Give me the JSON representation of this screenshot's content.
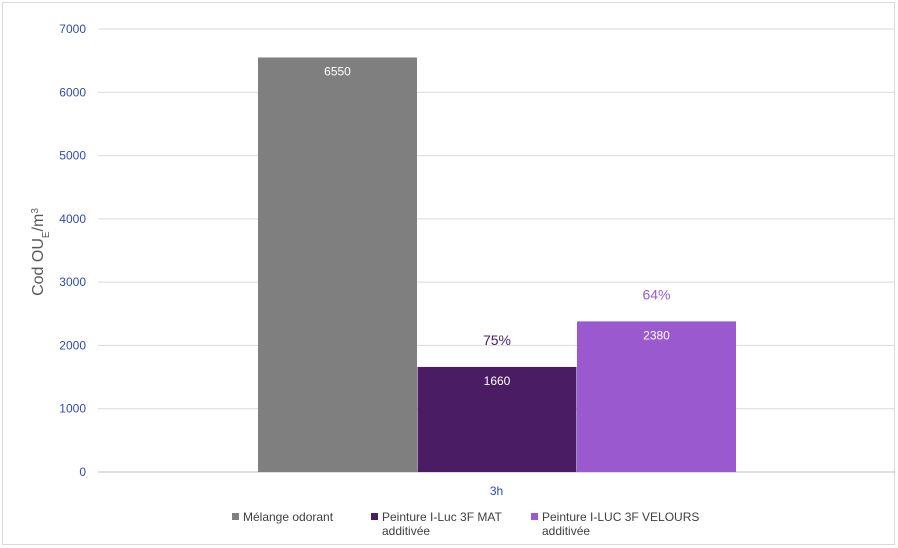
{
  "chart_data": {
    "type": "bar",
    "categories": [
      "3h"
    ],
    "ylim": [
      0,
      7000
    ],
    "yticks": [
      0,
      1000,
      2000,
      3000,
      4000,
      5000,
      6000,
      7000
    ],
    "ylabel": "Cod OU",
    "ylabel_sub": "E",
    "ylabel_tail": "/m",
    "ylabel_sup": "3",
    "grid": true,
    "legend_position": "bottom",
    "series": [
      {
        "name_lines": [
          "Mélange odorant"
        ],
        "values": [
          6550
        ],
        "color": "#7f7f7f",
        "annotation": ""
      },
      {
        "name_lines": [
          "Peinture I-Luc 3F MAT",
          "additivée"
        ],
        "values": [
          1660
        ],
        "color": "#4a1c63",
        "annotation": "75%"
      },
      {
        "name_lines": [
          "Peinture I-LUC 3F VELOURS",
          "additivée"
        ],
        "values": [
          2380
        ],
        "color": "#9b59cf",
        "annotation": "64%"
      }
    ]
  }
}
